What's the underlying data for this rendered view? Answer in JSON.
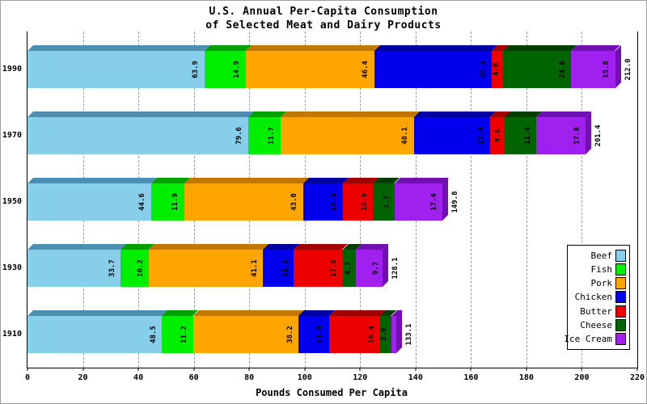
{
  "title": {
    "line1": "U.S. Annual Per-Capita Consumption",
    "line2": "of Selected Meat and Dairy Products"
  },
  "axis": {
    "xlabel": "Pounds Consumed Per Capita",
    "ticks": [
      0,
      20,
      40,
      60,
      80,
      100,
      120,
      140,
      160,
      180,
      200,
      220
    ]
  },
  "chart_data": {
    "type": "bar",
    "orientation": "horizontal",
    "stacked": true,
    "title": "U.S. Annual Per-Capita Consumption of Selected Meat and Dairy Products",
    "xlabel": "Pounds Consumed Per Capita",
    "xlim": [
      0,
      220
    ],
    "grid": "dashed-vertical",
    "legend_position": "right-middle",
    "categories": [
      "1990",
      "1970",
      "1950",
      "1930",
      "1910"
    ],
    "series": [
      {
        "name": "Beef",
        "color": "#87CEEB",
        "dark": "#4C8FB3",
        "values": [
          63.9,
          79.6,
          44.6,
          33.7,
          48.5
        ]
      },
      {
        "name": "Fish",
        "color": "#00EE00",
        "dark": "#00A000",
        "values": [
          14.9,
          11.7,
          11.9,
          10.2,
          11.2
        ]
      },
      {
        "name": "Pork",
        "color": "#FFA500",
        "dark": "#C07800",
        "values": [
          46.4,
          48.1,
          43.0,
          41.1,
          38.2
        ]
      },
      {
        "name": "Chicken",
        "color": "#0000EE",
        "dark": "#0000A0",
        "values": [
          42.4,
          27.4,
          14.3,
          11.1,
          11.0
        ]
      },
      {
        "name": "Butter",
        "color": "#EE0000",
        "dark": "#A00000",
        "values": [
          4.0,
          5.4,
          10.9,
          17.6,
          18.4
        ]
      },
      {
        "name": "Cheese",
        "color": "#006400",
        "dark": "#003F00",
        "values": [
          24.6,
          11.4,
          7.7,
          4.7,
          3.9
        ]
      },
      {
        "name": "Ice Cream",
        "color": "#A020F0",
        "dark": "#7010B0",
        "values": [
          15.8,
          17.8,
          17.4,
          9.7,
          1.9
        ]
      }
    ],
    "totals": [
      212.0,
      201.4,
      149.8,
      128.1,
      133.1
    ],
    "min_label_value": 2.5
  }
}
